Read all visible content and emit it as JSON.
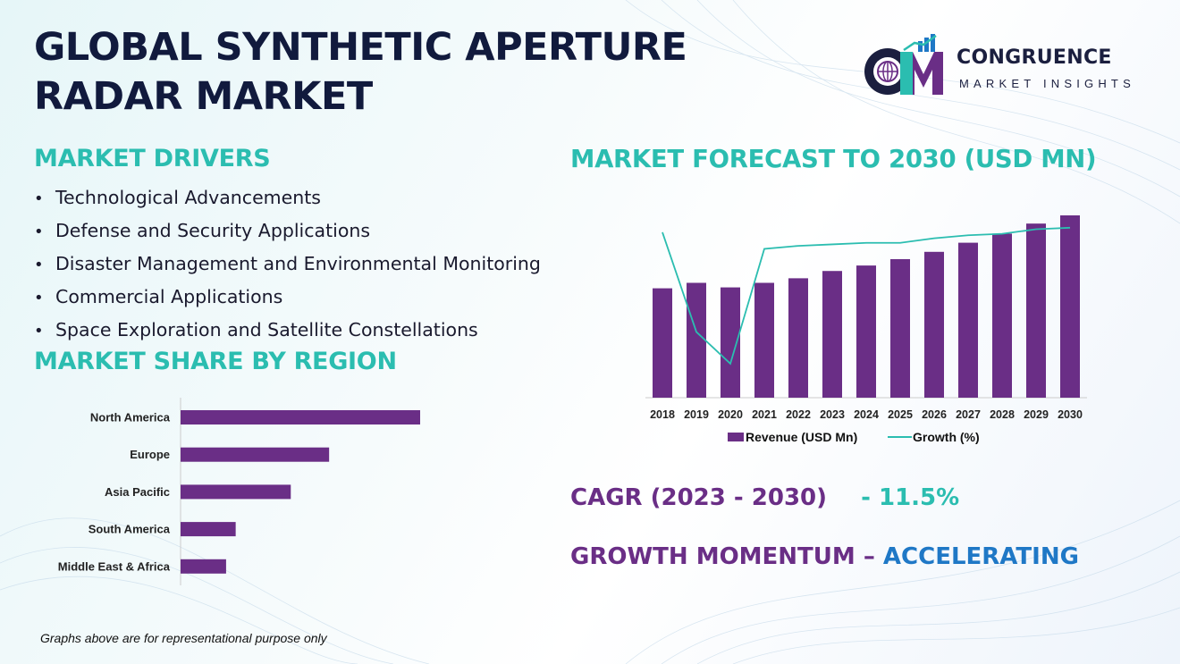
{
  "title_line1": "GLOBAL SYNTHETIC APERTURE",
  "title_line2": "RADAR MARKET",
  "logo": {
    "name": "CONGRUENCE",
    "subtitle": "MARKET INSIGHTS",
    "mark_letters": "CM",
    "colors": {
      "navy": "#1b1f3f",
      "purple": "#6a2e86",
      "teal": "#2bbdb0",
      "blue": "#1f78c6"
    }
  },
  "drivers": {
    "heading": "MARKET DRIVERS",
    "bullet": "•",
    "items": [
      "Technological Advancements",
      "Defense and Security Applications",
      "Disaster Management and Environmental Monitoring",
      "Commercial Applications",
      "Space Exploration and Satellite Constellations"
    ]
  },
  "region": {
    "heading": "MARKET SHARE BY REGION"
  },
  "forecast": {
    "heading": "MARKET FORECAST TO 2030 (USD MN)"
  },
  "cagr": {
    "label": "CAGR (2023 - 2030)",
    "value": "- 11.5%"
  },
  "momentum": {
    "label": "GROWTH MOMENTUM –",
    "value": "ACCELERATING"
  },
  "footnote": "Graphs above are for representational purpose only",
  "colors": {
    "title": "#111a3d",
    "heading": "#2bbdb0",
    "bar": "#6a2e86",
    "line": "#2bbdb0",
    "accent_blue": "#1f78c6"
  },
  "chart_data": [
    {
      "type": "bar",
      "orientation": "horizontal",
      "categories": [
        "North America",
        "Europe",
        "Asia Pacific",
        "South America",
        "Middle East & Africa"
      ],
      "values": [
        100,
        62,
        46,
        23,
        19
      ],
      "xlim": [
        0,
        100
      ],
      "grid": false
    },
    {
      "type": "bar+line",
      "categories": [
        "2018",
        "2019",
        "2020",
        "2021",
        "2022",
        "2023",
        "2024",
        "2025",
        "2026",
        "2027",
        "2028",
        "2029",
        "2030"
      ],
      "series": [
        {
          "name": "Revenue (USD Mn)",
          "type": "bar",
          "values": [
            60,
            63,
            60.5,
            63,
            65.5,
            69.5,
            72.5,
            76,
            80,
            85,
            90,
            95.5,
            100
          ],
          "ylim": [
            0,
            100
          ]
        },
        {
          "name": "Growth (%)",
          "type": "line",
          "values": [
            90,
            24,
            3,
            79,
            81,
            82,
            83,
            83,
            86,
            88,
            89,
            92,
            93
          ],
          "ylim": [
            0,
            100
          ]
        }
      ],
      "legend": "bottom",
      "grid": false
    }
  ]
}
